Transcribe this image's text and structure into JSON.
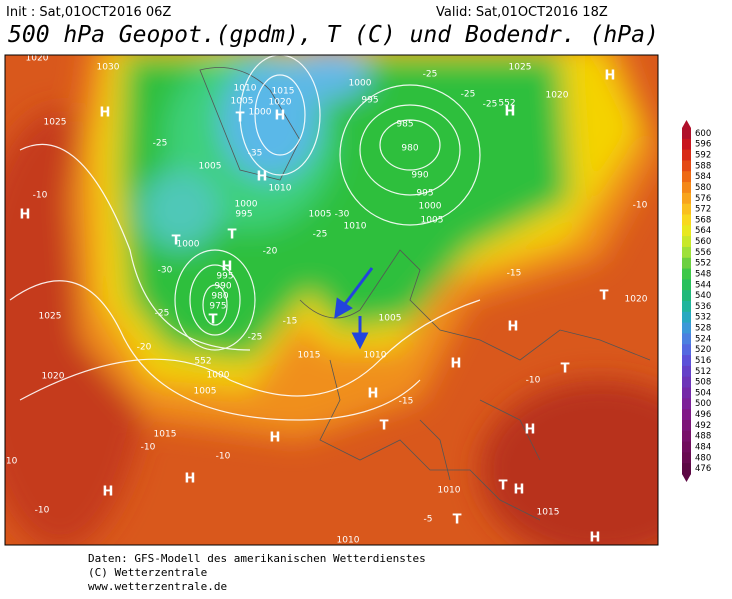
{
  "header": {
    "init": "Init : Sat,01OCT2016 06Z",
    "valid": "Valid: Sat,01OCT2016 18Z",
    "title": "500 hPa Geopot.(gpdm), T (C) und Bodendr. (hPa)"
  },
  "colorbar": {
    "values": [
      600,
      596,
      592,
      588,
      584,
      580,
      576,
      572,
      568,
      564,
      560,
      556,
      552,
      548,
      544,
      540,
      536,
      532,
      528,
      524,
      520,
      516,
      512,
      508,
      504,
      500,
      496,
      492,
      488,
      484,
      480,
      476
    ]
  },
  "map": {
    "labels": [
      "1030",
      "1020",
      "1025",
      "1010",
      "1015",
      "1020",
      "1005",
      "1000",
      "H",
      "T",
      "H",
      "-25",
      "-35",
      "1005",
      "H",
      "1010",
      "1000",
      "995",
      "T",
      "T",
      "1000",
      "-20",
      "-30",
      "H",
      "995",
      "990",
      "980",
      "975",
      "T",
      "-25",
      "-15",
      "-25",
      "-20",
      "552",
      "1000",
      "1005",
      "1015",
      "H",
      "-15",
      "1000",
      "995",
      "985",
      "980",
      "990",
      "995",
      "1000",
      "1005",
      "1010",
      "1005",
      "-30",
      "-25",
      "-25",
      "1025",
      "1020",
      "-25",
      "-25",
      "552",
      "H",
      "H",
      "-10",
      "H",
      "-10",
      "-15",
      "T",
      "1020",
      "1025",
      "1020",
      "1005",
      "1010",
      "H",
      "H",
      "-10",
      "T",
      "1015",
      "-10",
      "H",
      "-10",
      "T",
      "H",
      "H",
      "-10",
      "H",
      "-10",
      "1010",
      "T",
      "H",
      "T",
      "1015",
      "-5",
      "1010",
      "H"
    ]
  },
  "footer": {
    "lines": [
      "Daten: GFS-Modell des amerikanischen Wetterdienstes",
      "(C) Wetterzentrale",
      "www.wetterzentrale.de"
    ]
  }
}
